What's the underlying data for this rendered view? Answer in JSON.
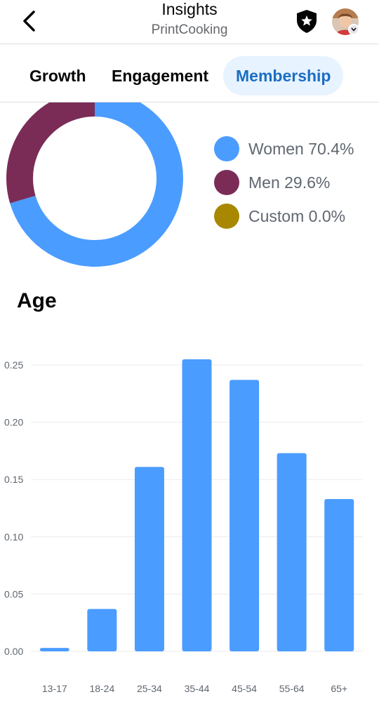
{
  "header": {
    "title": "Insights",
    "subtitle": "PrintCooking",
    "back_icon": "chevron-left-icon",
    "shield_icon": "admin-shield-star-icon"
  },
  "tabs": [
    {
      "label": "Growth",
      "active": false
    },
    {
      "label": "Engagement",
      "active": false
    },
    {
      "label": "Membership",
      "active": true
    }
  ],
  "gender": {
    "slices": [
      {
        "label": "Women 70.4%",
        "value": 70.4,
        "color": "#4b9cff"
      },
      {
        "label": "Men 29.6%",
        "value": 29.6,
        "color": "#7a2c57"
      },
      {
        "label": "Custom 0.0%",
        "value": 0.0,
        "color": "#a88800"
      }
    ]
  },
  "age": {
    "title": "Age"
  },
  "chart_data": [
    {
      "type": "pie",
      "categories": [
        "Women",
        "Men",
        "Custom"
      ],
      "values": [
        70.4,
        29.6,
        0.0
      ],
      "colors": [
        "#4b9cff",
        "#7a2c57",
        "#a88800"
      ],
      "legend": "right"
    },
    {
      "type": "bar",
      "categories": [
        "13-17",
        "18-24",
        "25-34",
        "35-44",
        "45-54",
        "55-64",
        "65+"
      ],
      "values": [
        0.003,
        0.037,
        0.161,
        0.255,
        0.237,
        0.173,
        0.133
      ],
      "yticks": [
        "0.00",
        "0.05",
        "0.10",
        "0.15",
        "0.20",
        "0.25"
      ],
      "ylim": [
        0,
        0.25
      ],
      "grid": true,
      "color": "#4b9cff"
    }
  ]
}
